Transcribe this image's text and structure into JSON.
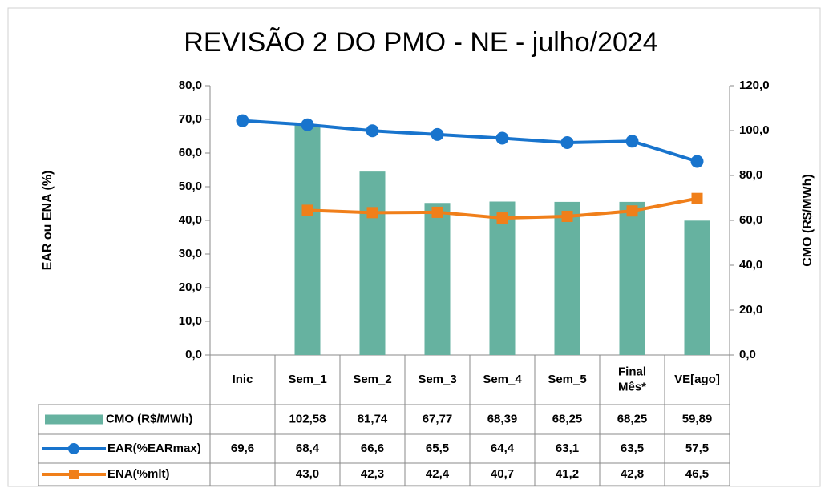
{
  "chart_data": {
    "type": "bar_line_table",
    "title": "REVISÃO 2 DO PMO - NE - julho/2024",
    "ylabel": "EAR ou ENA (%)",
    "y2label": "CMO (R$/MWh)",
    "categories": [
      "Inic",
      "Sem_1",
      "Sem_2",
      "Sem_3",
      "Sem_4",
      "Sem_5",
      "Final Mês*",
      "VE[ago]"
    ],
    "ylim": [
      0,
      80
    ],
    "yticks": [
      {
        "value": 0,
        "label": "0,0"
      },
      {
        "value": 10,
        "label": "10,0"
      },
      {
        "value": 20,
        "label": "20,0"
      },
      {
        "value": 30,
        "label": "30,0"
      },
      {
        "value": 40,
        "label": "40,0"
      },
      {
        "value": 50,
        "label": "50,0"
      },
      {
        "value": 60,
        "label": "60,0"
      },
      {
        "value": 70,
        "label": "70,0"
      },
      {
        "value": 80,
        "label": "80,0"
      }
    ],
    "y2lim": [
      0,
      120
    ],
    "y2ticks": [
      {
        "value": 0,
        "label": "0,0"
      },
      {
        "value": 20,
        "label": "20,0"
      },
      {
        "value": 40,
        "label": "40,0"
      },
      {
        "value": 60,
        "label": "60,0"
      },
      {
        "value": 80,
        "label": "80,0"
      },
      {
        "value": 100,
        "label": "100,0"
      },
      {
        "value": 120,
        "label": "120,0"
      }
    ],
    "series": [
      {
        "name": "CMO (R$/MWh)",
        "kind": "bar",
        "axis": "y2",
        "color": "#66b2a0",
        "values": [
          null,
          102.58,
          81.74,
          67.77,
          68.39,
          68.25,
          68.25,
          59.89
        ],
        "value_labels": [
          null,
          "102,58",
          "81,74",
          "67,77",
          "68,39",
          "68,25",
          "68,25",
          "59,89"
        ]
      },
      {
        "name": "EAR(%EARmax)",
        "kind": "line",
        "marker": "circle",
        "color": "#1874cd",
        "values": [
          69.6,
          68.4,
          66.6,
          65.5,
          64.4,
          63.1,
          63.5,
          57.5
        ],
        "value_labels": [
          "69,6",
          "68,4",
          "66,6",
          "65,5",
          "64,4",
          "63,1",
          "63,5",
          "57,5"
        ]
      },
      {
        "name": "ENA(%mlt)",
        "kind": "line",
        "marker": "square",
        "color": "#f07f1a",
        "values": [
          null,
          43.0,
          42.3,
          42.4,
          40.7,
          41.2,
          42.8,
          46.5
        ],
        "value_labels": [
          null,
          "43,0",
          "42,3",
          "42,4",
          "40,7",
          "41,2",
          "42,8",
          "46,5"
        ]
      }
    ]
  }
}
